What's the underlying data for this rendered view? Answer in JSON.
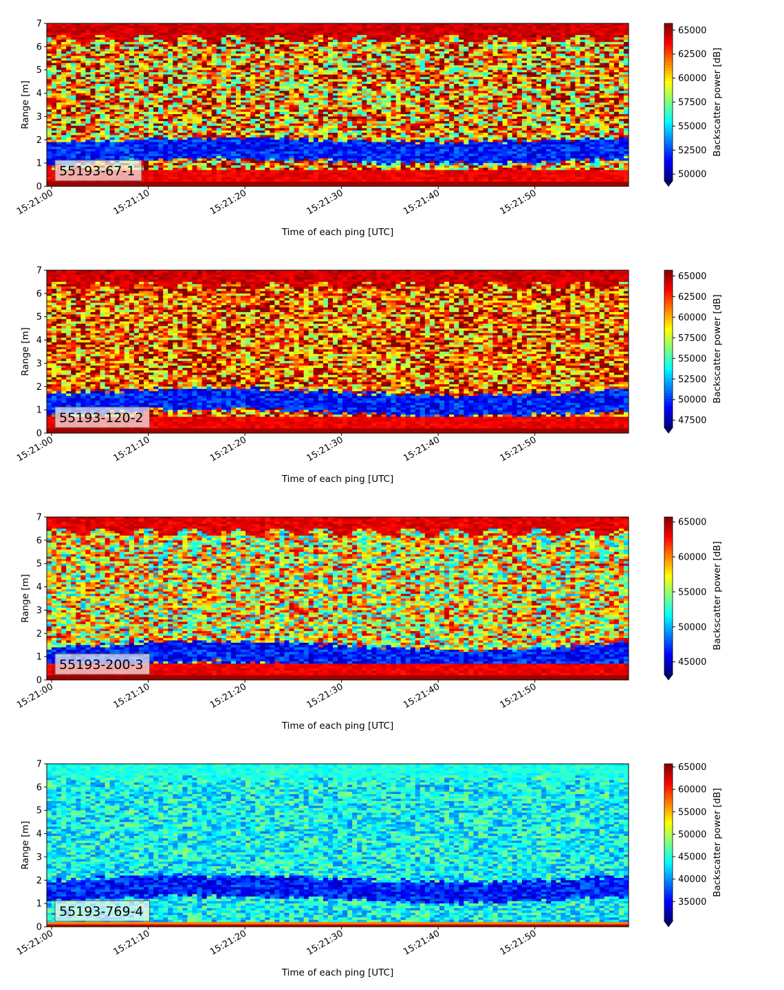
{
  "chart_data": [
    {
      "type": "heatmap",
      "label": "55193-67-1",
      "xlabel": "Time of each ping [UTC]",
      "ylabel": "Range [m]",
      "xticks": [
        "15:21:00",
        "15:21:10",
        "15:21:20",
        "15:21:30",
        "15:21:40",
        "15:21:50"
      ],
      "yticks": [
        "0",
        "1",
        "2",
        "3",
        "4",
        "5",
        "6",
        "7"
      ],
      "xlim_seconds": [
        0,
        60
      ],
      "ylim": [
        0,
        7
      ],
      "colorbar": {
        "label": "Backscatter power [dB]",
        "ticks": [
          "50000",
          "52500",
          "55000",
          "57500",
          "60000",
          "62500",
          "65000"
        ],
        "range": [
          49300,
          65700
        ],
        "extend": "min",
        "colormap": "jet"
      },
      "pattern": {
        "blue_band_base": 1.4,
        "blue_band_slope": 0.15,
        "noise_mean": 0.72,
        "noise_spread": 0.35,
        "top_level": 0.97
      }
    },
    {
      "type": "heatmap",
      "label": "55193-120-2",
      "xlabel": "Time of each ping [UTC]",
      "ylabel": "Range [m]",
      "xticks": [
        "15:21:00",
        "15:21:10",
        "15:21:20",
        "15:21:30",
        "15:21:40",
        "15:21:50"
      ],
      "yticks": [
        "0",
        "1",
        "2",
        "3",
        "4",
        "5",
        "6",
        "7"
      ],
      "xlim_seconds": [
        0,
        60
      ],
      "ylim": [
        0,
        7
      ],
      "colorbar": {
        "label": "Backscatter power [dB]",
        "ticks": [
          "47500",
          "50000",
          "52500",
          "55000",
          "57500",
          "60000",
          "62500",
          "65000"
        ],
        "range": [
          46600,
          65700
        ],
        "extend": "min",
        "colormap": "jet"
      },
      "pattern": {
        "blue_band_base": 1.2,
        "blue_band_slope": 0.2,
        "noise_mean": 0.78,
        "noise_spread": 0.3,
        "top_level": 0.97
      }
    },
    {
      "type": "heatmap",
      "label": "55193-200-3",
      "xlabel": "Time of each ping [UTC]",
      "ylabel": "Range [m]",
      "xticks": [
        "15:21:00",
        "15:21:10",
        "15:21:20",
        "15:21:30",
        "15:21:40",
        "15:21:50"
      ],
      "yticks": [
        "0",
        "1",
        "2",
        "3",
        "4",
        "5",
        "6",
        "7"
      ],
      "xlim_seconds": [
        0,
        60
      ],
      "ylim": [
        0,
        7
      ],
      "colorbar": {
        "label": "Backscatter power [dB]",
        "ticks": [
          "45000",
          "50000",
          "55000",
          "60000",
          "65000"
        ],
        "range": [
          43200,
          65700
        ],
        "extend": "min",
        "colormap": "jet"
      },
      "pattern": {
        "blue_band_base": 0.9,
        "blue_band_slope": 0.25,
        "noise_mean": 0.62,
        "noise_spread": 0.33,
        "top_level": 0.95
      }
    },
    {
      "type": "heatmap",
      "label": "55193-769-4",
      "xlabel": "Time of each ping [UTC]",
      "ylabel": "Range [m]",
      "xticks": [
        "15:21:00",
        "15:21:10",
        "15:21:20",
        "15:21:30",
        "15:21:40",
        "15:21:50"
      ],
      "yticks": [
        "0",
        "1",
        "2",
        "3",
        "4",
        "5",
        "6",
        "7"
      ],
      "xlim_seconds": [
        0,
        60
      ],
      "ylim": [
        0,
        7
      ],
      "colorbar": {
        "label": "Backscatter power [dB]",
        "ticks": [
          "35000",
          "40000",
          "45000",
          "50000",
          "55000",
          "60000",
          "65000"
        ],
        "range": [
          30600,
          65700
        ],
        "extend": "min",
        "colormap": "jet"
      },
      "pattern": {
        "blue_band_base": 1.5,
        "blue_band_slope": 0.2,
        "noise_mean": 0.38,
        "noise_spread": 0.14,
        "top_level": 0.45
      }
    }
  ],
  "colors": {
    "label_box_bg": "#f2f2f2",
    "label_box_border": "#555555"
  }
}
